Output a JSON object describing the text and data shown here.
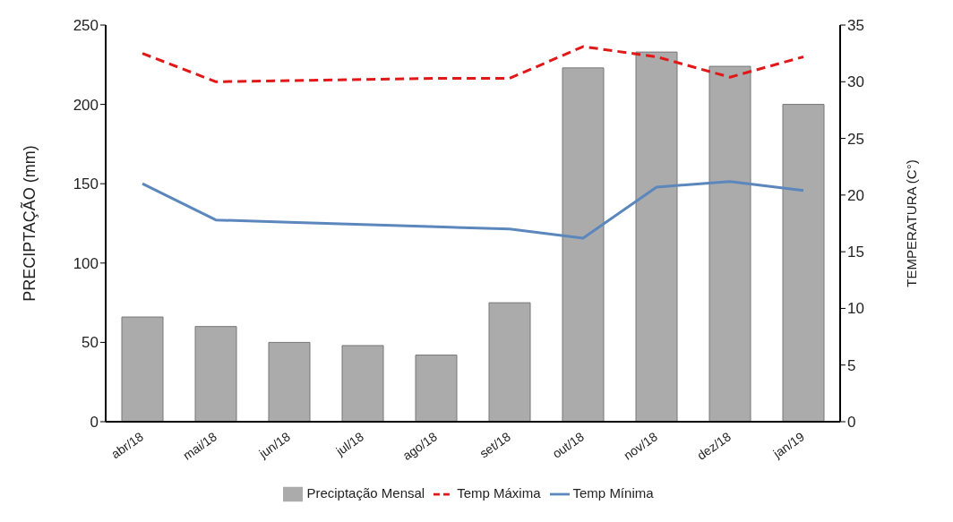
{
  "chart_data": {
    "type": "bar",
    "ylabel": "PRECIPTAÇÃO (mm)",
    "y2label": "TEMPERATURA (C°)",
    "categories": [
      "abr/18",
      "mai/18",
      "jun/18",
      "jul/18",
      "ago/18",
      "set/18",
      "out/18",
      "nov/18",
      "dez/18",
      "jan/19"
    ],
    "series": [
      {
        "name": "Preciptação Mensal",
        "color": "#ababab",
        "values": [
          66,
          60,
          50,
          48,
          42,
          75,
          223,
          233,
          224,
          200
        ]
      },
      {
        "name": "Temp Máxima",
        "type": "line",
        "axis": "y2",
        "color": "#e01818",
        "line_style": "dashed",
        "values": [
          32.5,
          30.0,
          30.1,
          30.2,
          30.3,
          30.3,
          33.1,
          32.2,
          30.4,
          32.2
        ]
      },
      {
        "name": "Temp Mínima",
        "type": "line",
        "axis": "y2",
        "color": "#5b87bd",
        "line_style": "solid",
        "values": [
          21.0,
          17.8,
          17.6,
          17.4,
          17.2,
          17.0,
          16.2,
          20.7,
          21.2,
          20.4
        ]
      }
    ],
    "ylim": [
      0,
      250
    ],
    "yticks": [
      0,
      50,
      100,
      150,
      200,
      250
    ],
    "y2lim": [
      0,
      35
    ],
    "y2ticks": [
      0,
      5,
      10,
      15,
      20,
      25,
      30,
      35
    ],
    "grid": false,
    "legend": "bottom",
    "marker": "none"
  }
}
